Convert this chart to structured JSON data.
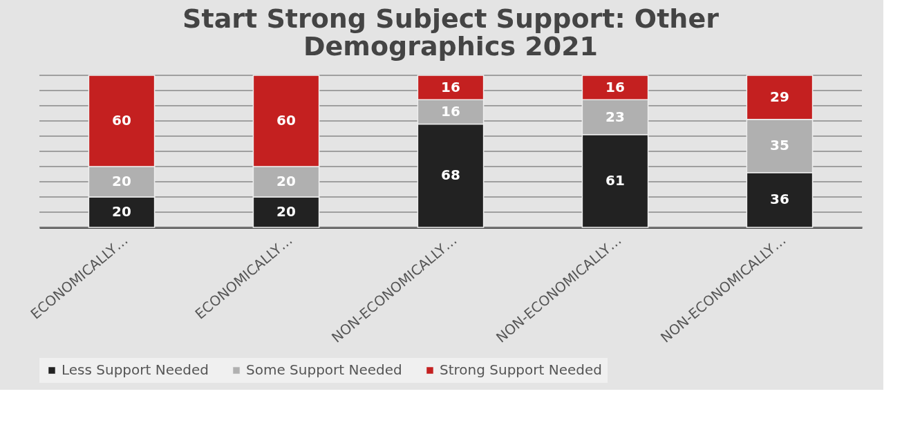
{
  "chart_data": {
    "type": "bar",
    "title": [
      "Start Strong Subject Support: Other",
      "Demographics 2021"
    ],
    "categories": [
      "ECONOMICALLY…",
      "ECONOMICALLY…",
      "NON-ECONOMICALLY…",
      "NON-ECONOMICALLY…",
      "NON-ECONOMICALLY…"
    ],
    "stacked": true,
    "data_labels": true,
    "grid": "y",
    "legend": "bottom",
    "tick_labels": "x",
    "ylim": [
      0,
      100
    ],
    "yticks": [
      {
        "value": 0,
        "label": null
      },
      {
        "value": 10,
        "label": null
      },
      {
        "value": 20,
        "label": null
      },
      {
        "value": 30,
        "label": null
      },
      {
        "value": 40,
        "label": null
      },
      {
        "value": 50,
        "label": null
      },
      {
        "value": 60,
        "label": null
      },
      {
        "value": 70,
        "label": null
      },
      {
        "value": 80,
        "label": null
      },
      {
        "value": 90,
        "label": null
      },
      {
        "value": 100,
        "label": null
      }
    ],
    "series": [
      {
        "name": "Less Support Needed",
        "color": "#222222",
        "values": [
          20,
          20,
          68,
          61,
          36
        ]
      },
      {
        "name": "Some Support Needed",
        "color": "#b0b0b0",
        "values": [
          20,
          20,
          16,
          23,
          35
        ]
      },
      {
        "name": "Strong Support Needed",
        "color": "#c42020",
        "values": [
          60,
          60,
          16,
          16,
          29
        ]
      }
    ]
  }
}
